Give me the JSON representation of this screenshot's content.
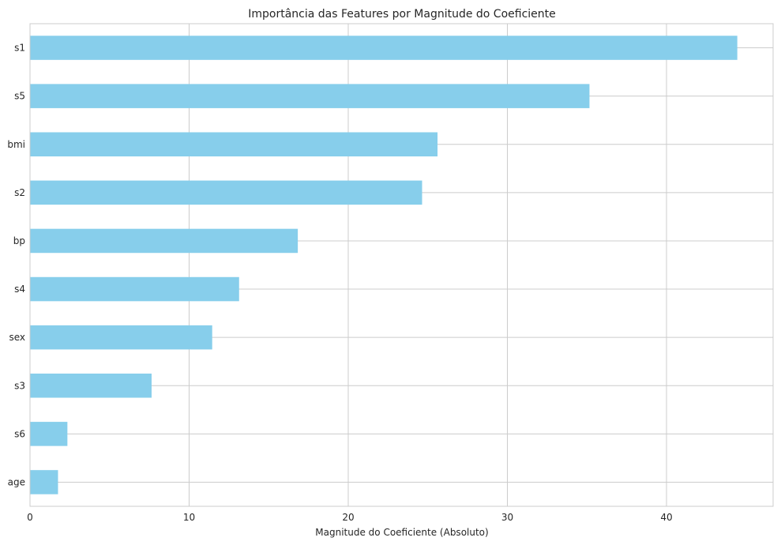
{
  "chart_data": {
    "type": "bar",
    "orientation": "horizontal",
    "title": "Importância das Features por Magnitude do Coeficiente",
    "xlabel": "Magnitude do Coeficiente (Absoluto)",
    "ylabel": "",
    "categories": [
      "s1",
      "s5",
      "bmi",
      "s2",
      "bp",
      "s4",
      "sex",
      "s3",
      "s6",
      "age"
    ],
    "values": [
      44.45,
      35.16,
      25.61,
      24.64,
      16.83,
      13.14,
      11.45,
      7.64,
      2.35,
      1.76
    ],
    "xlim": [
      0,
      46.7
    ],
    "xticks": [
      "0",
      "10",
      "20",
      "30",
      "40"
    ],
    "bar_color": "#87ceeb",
    "grid": true,
    "grid_color": "#cccccc",
    "frame_color": "#cccccc"
  }
}
